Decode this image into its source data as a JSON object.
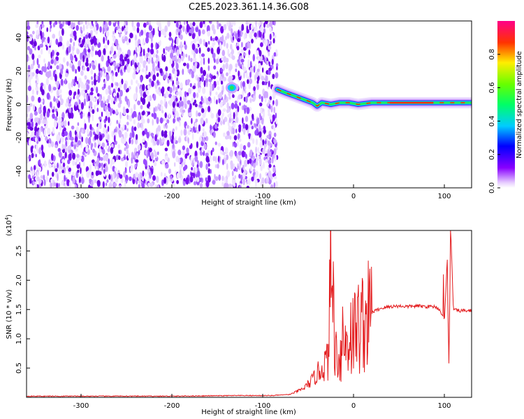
{
  "figure_title": "C2E5.2023.361.14.36.G08",
  "chart_data": [
    {
      "type": "heatmap",
      "xlabel": "Height of straight line (km)",
      "ylabel": "Frequency (Hz)",
      "xlim": [
        -360,
        130
      ],
      "ylim": [
        -50,
        50
      ],
      "xticks": [
        -300,
        -200,
        -100,
        0,
        100
      ],
      "yticks": [
        -40,
        -20,
        0,
        20,
        40
      ],
      "colorbar": {
        "label": "Normalized spectral amplitude",
        "range": [
          0,
          1
        ],
        "ticks": [
          "0.0",
          "0.2",
          "0.4",
          "0.6",
          "0.8"
        ],
        "colormap": "hsv-like violet-blue-cyan-green-yellow-red-pink"
      },
      "noise_region_x": [
        -360,
        -84
      ],
      "signal_track": {
        "x": [
          -84,
          -75,
          -65,
          -55,
          -45,
          -40,
          -35,
          -25,
          -15,
          -5,
          5,
          20,
          40,
          60,
          80,
          92,
          100,
          110,
          130
        ],
        "frequency": [
          9,
          7,
          5,
          3,
          1,
          -1,
          1,
          0,
          1,
          1,
          0,
          1,
          1,
          1,
          1,
          1,
          1,
          1,
          1
        ]
      },
      "isolated_blob": {
        "x": -134,
        "frequency": 10
      }
    },
    {
      "type": "line",
      "xlabel": "Height of straight line (km)",
      "ylabel": "SNR (10 * v/v)",
      "yscale_label": "(x10",
      "yscale_exponent": "4",
      "yscale_close": ")",
      "xlim": [
        -360,
        130
      ],
      "ylim": [
        0,
        2.85
      ],
      "xticks": [
        -300,
        -200,
        -100,
        0,
        100
      ],
      "yticks": [
        "0.5",
        "1.0",
        "1.5",
        "2.0",
        "2.5"
      ],
      "line_color": "#e31a1c",
      "series": [
        {
          "x": [
            -360,
            -300,
            -200,
            -130,
            -110,
            -90,
            -70,
            -55,
            -45,
            -35,
            -28,
            -25,
            -20,
            -15,
            -10,
            -5,
            0,
            5,
            10,
            15,
            20,
            30,
            40,
            50,
            60,
            70,
            80,
            90,
            95,
            100,
            103,
            105,
            107,
            110,
            115,
            120,
            130
          ],
          "values": [
            0.02,
            0.02,
            0.02,
            0.03,
            0.03,
            0.03,
            0.05,
            0.15,
            0.3,
            0.5,
            0.65,
            2.3,
            0.8,
            0.7,
            0.9,
            1.0,
            1.1,
            1.2,
            1.3,
            1.35,
            1.45,
            1.52,
            1.55,
            1.56,
            1.55,
            1.56,
            1.55,
            1.55,
            1.5,
            1.3,
            2.3,
            0.6,
            2.85,
            1.5,
            1.48,
            1.48,
            1.48
          ]
        }
      ],
      "spikes": [
        {
          "x": -22,
          "value": 2.32
        },
        {
          "x": -12,
          "value": 1.55
        },
        {
          "x": -3,
          "value": 1.62
        },
        {
          "x": 5,
          "value": 1.72
        },
        {
          "x": 99,
          "value": 2.1
        },
        {
          "x": 103,
          "value": 2.35
        },
        {
          "x": 105,
          "value": 0.58
        },
        {
          "x": 107,
          "value": 2.85
        }
      ]
    }
  ]
}
